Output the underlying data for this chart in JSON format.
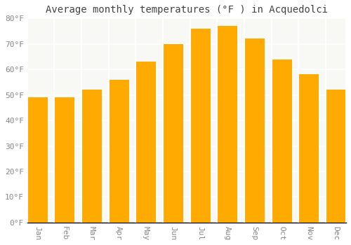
{
  "months": [
    "Jan",
    "Feb",
    "Mar",
    "Apr",
    "May",
    "Jun",
    "Jul",
    "Aug",
    "Sep",
    "Oct",
    "Nov",
    "Dec"
  ],
  "values": [
    49,
    49,
    52,
    56,
    63,
    70,
    76,
    77,
    72,
    64,
    58,
    52
  ],
  "bar_color_top": "#FDB913",
  "bar_color_bottom": "#F0A500",
  "bar_edge_color": "#E8960A",
  "title": "Average monthly temperatures (°F ) in Acquedolci",
  "ylim": [
    0,
    80
  ],
  "yticks": [
    0,
    10,
    20,
    30,
    40,
    50,
    60,
    70,
    80
  ],
  "ytick_labels": [
    "0°F",
    "10°F",
    "20°F",
    "30°F",
    "40°F",
    "50°F",
    "60°F",
    "70°F",
    "80°F"
  ],
  "background_color": "#FFFFFF",
  "plot_bg_color": "#F8F8F5",
  "grid_color": "#FFFFFF",
  "title_fontsize": 10,
  "tick_fontsize": 8,
  "tick_color": "#888888",
  "figsize": [
    5.0,
    3.5
  ],
  "dpi": 100,
  "bar_width": 0.75
}
